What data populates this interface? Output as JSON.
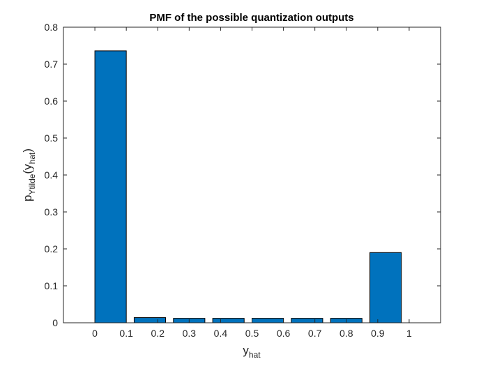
{
  "chart_data": {
    "type": "bar",
    "title": "PMF of the possible quantization outputs",
    "xlabel": {
      "base": "y",
      "sub": "hat"
    },
    "ylabel": {
      "base": "p",
      "sub": "Ytilde",
      "paren_open": "(y",
      "arg_sub": "hat",
      "paren_close": ")"
    },
    "x": [
      0.05,
      0.175,
      0.3,
      0.425,
      0.55,
      0.675,
      0.8,
      0.925
    ],
    "values": [
      0.736,
      0.014,
      0.012,
      0.012,
      0.012,
      0.012,
      0.012,
      0.19
    ],
    "bar_width": 0.1,
    "xlim": [
      -0.1,
      1.1
    ],
    "ylim": [
      0,
      0.8
    ],
    "xticks": [
      0,
      0.1,
      0.2,
      0.3,
      0.4,
      0.5,
      0.6,
      0.7,
      0.8,
      0.9,
      1
    ],
    "xtick_labels": [
      "0",
      "0.1",
      "0.2",
      "0.3",
      "0.4",
      "0.5",
      "0.6",
      "0.7",
      "0.8",
      "0.9",
      "1"
    ],
    "yticks": [
      0,
      0.1,
      0.2,
      0.3,
      0.4,
      0.5,
      0.6,
      0.7,
      0.8
    ],
    "ytick_labels": [
      "0",
      "0.1",
      "0.2",
      "0.3",
      "0.4",
      "0.5",
      "0.6",
      "0.7",
      "0.8"
    ],
    "bar_color": "#0072bd",
    "edge_color": "#000000",
    "grid": false,
    "box": true
  }
}
